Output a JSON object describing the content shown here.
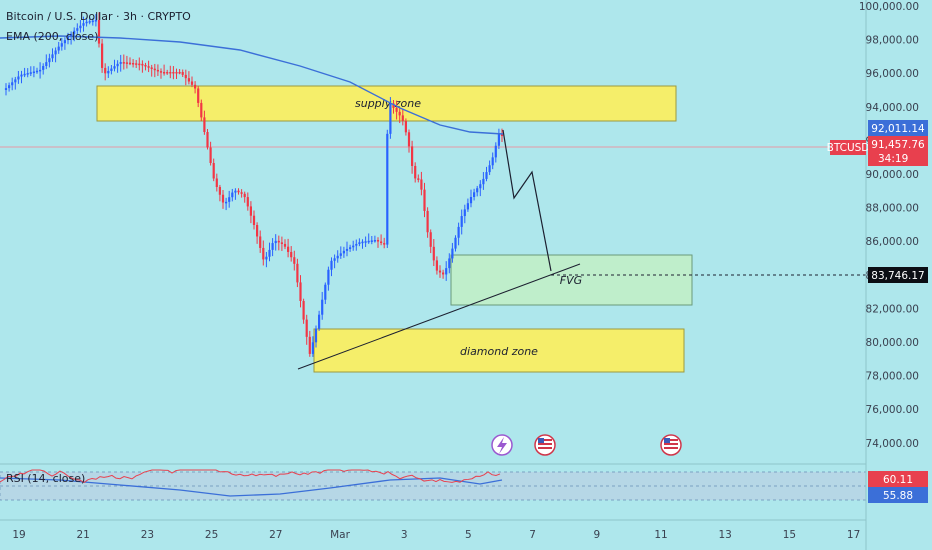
{
  "header": {
    "title": "Bitcoin / U.S. Dollar · 3h · CRYPTO",
    "ema_label": "EMA (200, close)"
  },
  "zones": {
    "supply": "supply zone",
    "fvg": "FVG",
    "diamond": "diamond zone"
  },
  "rsi": {
    "label": "RSI (14, close)",
    "value_high": "60.11",
    "value_low": "55.88"
  },
  "price_axis": {
    "ticks": [
      "100,000.00",
      "98,000.00",
      "96,000.00",
      "94,000.00",
      "92,000.00",
      "90,000.00",
      "88,000.00",
      "86,000.00",
      "84,000.00",
      "82,000.00",
      "80,000.00",
      "78,000.00",
      "76,000.00",
      "74,000.00"
    ],
    "ema_tag": "92,011.14",
    "symbol_tag": "BTCUSD",
    "last_price": "91,457.76",
    "countdown": "34:19",
    "level_tag": "83,746.17"
  },
  "time_axis": {
    "labels": [
      "19",
      "21",
      "23",
      "25",
      "27",
      "Mar",
      "3",
      "5",
      "7",
      "9",
      "11",
      "13",
      "15",
      "17"
    ]
  },
  "colors": {
    "background": "#aee7ec",
    "bull": "#2962ff",
    "bear": "#f23645",
    "ema": "#3b6fd8",
    "zone_yellow": "#f5ee6a",
    "fvg": "#bfeecb"
  },
  "event_icons": [
    "lightning-event-icon",
    "us-flag-event-icon",
    "us-flag-event-icon"
  ]
}
